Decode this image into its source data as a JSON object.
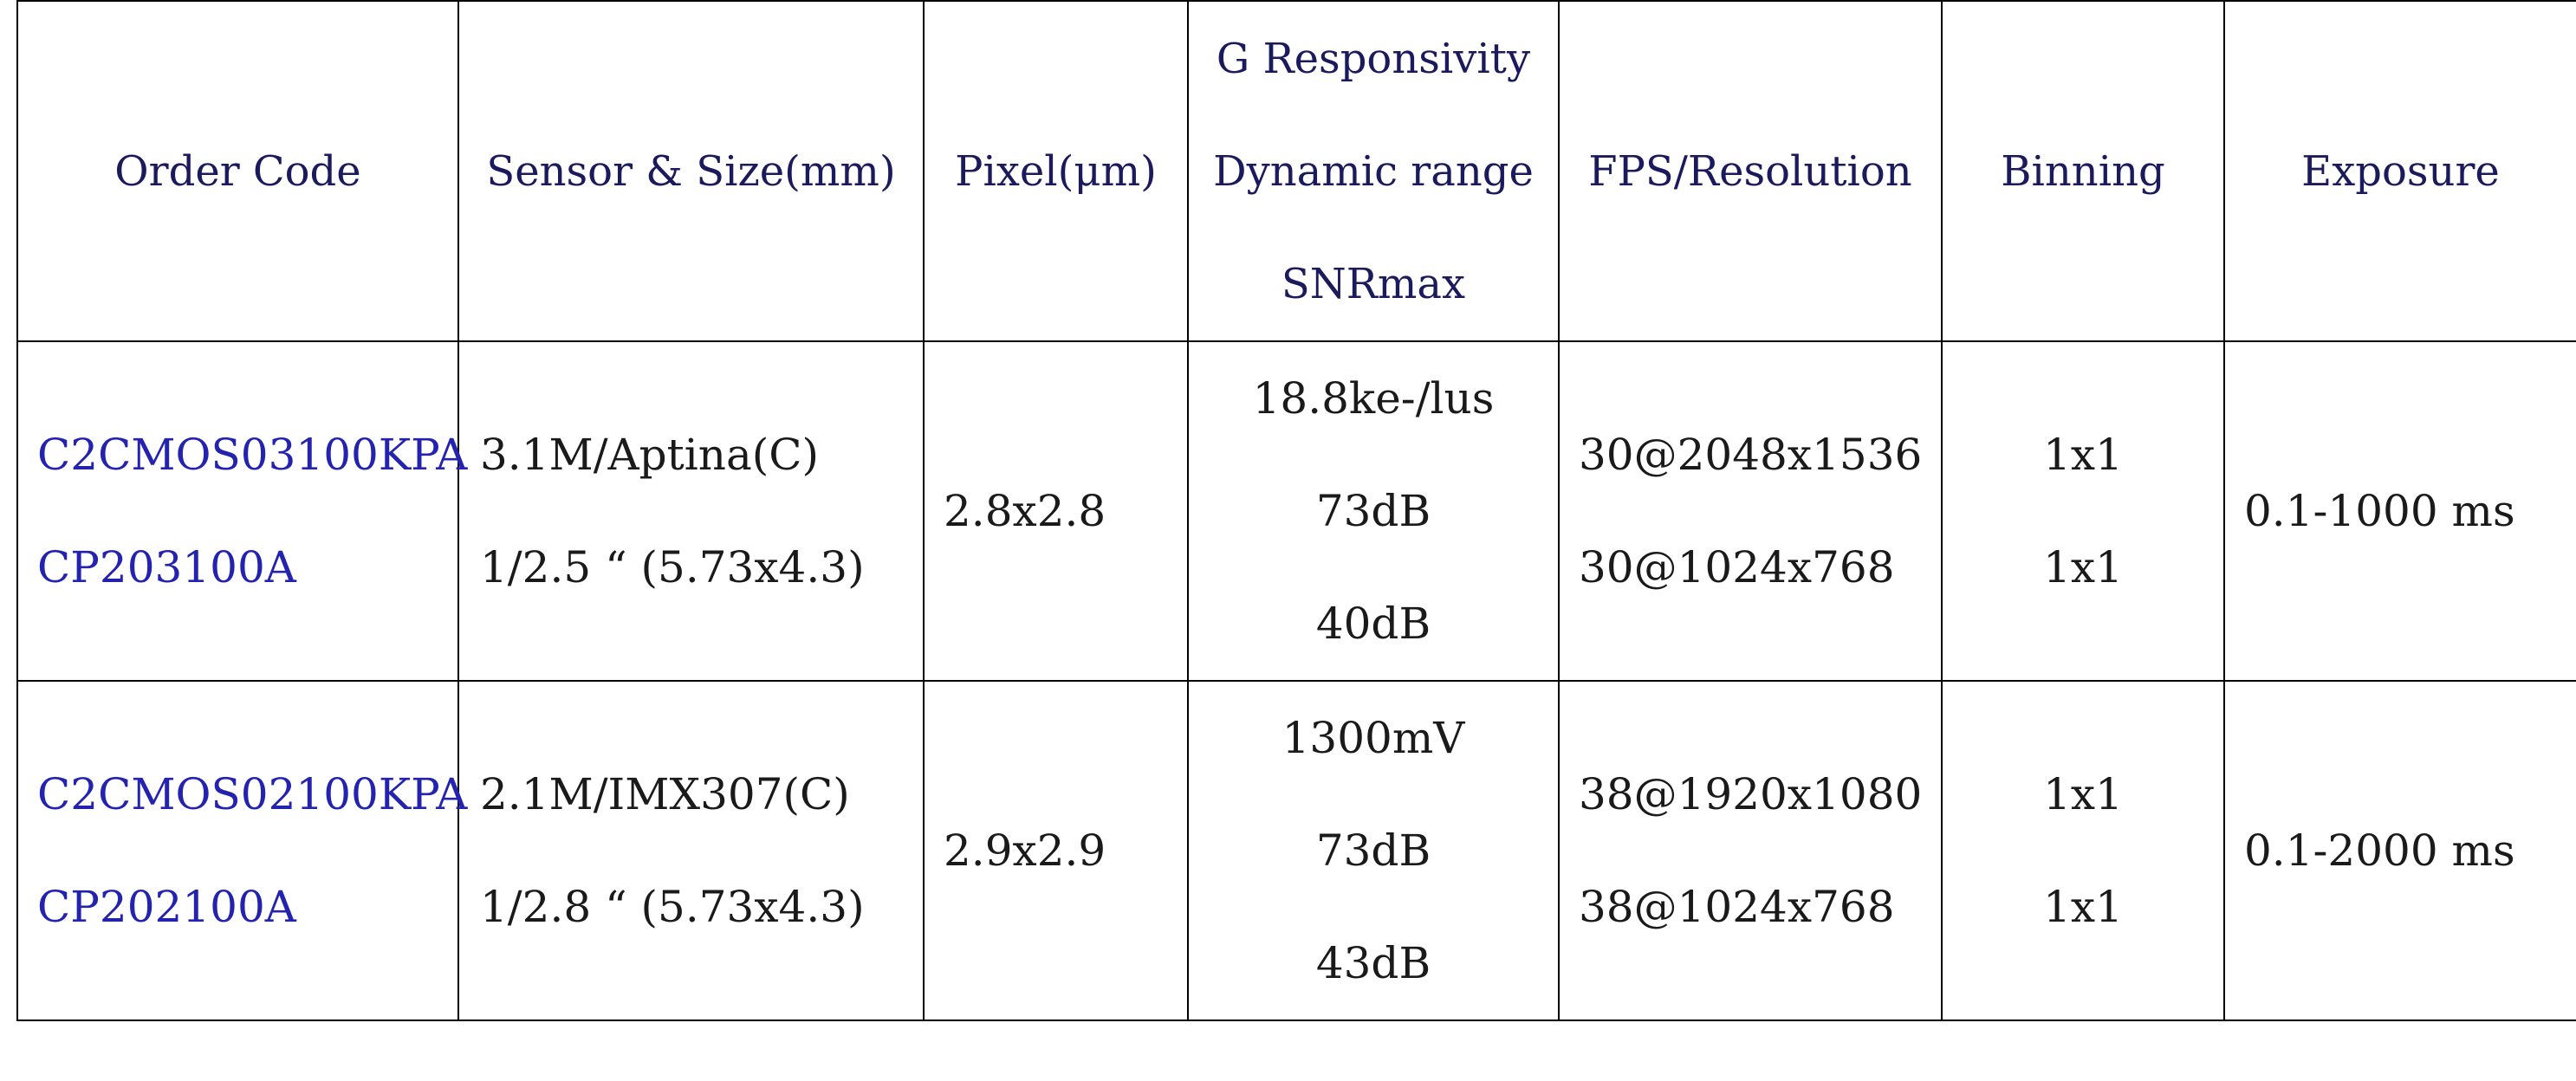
{
  "columns": [
    {
      "lines": [
        "Order Code"
      ]
    },
    {
      "lines": [
        "Sensor & Size(mm)"
      ]
    },
    {
      "lines": [
        "Pixel(μm)"
      ]
    },
    {
      "lines": [
        "G Responsivity",
        "Dynamic range",
        "SNRmax"
      ]
    },
    {
      "lines": [
        "FPS/Resolution"
      ]
    },
    {
      "lines": [
        "Binning"
      ]
    },
    {
      "lines": [
        "Exposure"
      ]
    }
  ],
  "rows": [
    {
      "order_code": [
        "C2CMOS03100KPA",
        "CP203100A"
      ],
      "sensor": [
        "3.1M/Aptina(C)",
        "1/2.5 “ (5.73x4.3)"
      ],
      "pixel": "2.8x2.8",
      "responsivity": [
        "18.8ke-/lus",
        "73dB",
        "40dB"
      ],
      "fps": [
        "30@2048x1536",
        "30@1024x768"
      ],
      "binning": [
        "1x1",
        "1x1"
      ],
      "exposure": "0.1-1000 ms"
    },
    {
      "order_code": [
        "C2CMOS02100KPA",
        "CP202100A"
      ],
      "sensor": [
        "2.1M/IMX307(C)",
        "1/2.8 “ (5.73x4.3)"
      ],
      "pixel": "2.9x2.9",
      "responsivity": [
        "1300mV",
        "73dB",
        "43dB"
      ],
      "fps": [
        "38@1920x1080",
        "38@1024x768"
      ],
      "binning": [
        "1x1",
        "1x1"
      ],
      "exposure": "0.1-2000 ms"
    }
  ]
}
